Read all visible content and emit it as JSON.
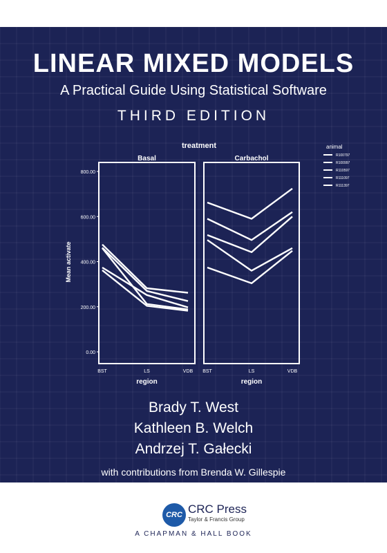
{
  "cover": {
    "title": "LINEAR MIXED MODELS",
    "subtitle": "A Practical Guide Using Statistical Software",
    "edition": "THIRD EDITION",
    "background_color": "#1c2355",
    "authors": [
      "Brady T. West",
      "Kathleen B. Welch",
      "Andrzej T. Gałecki"
    ],
    "contributions": "with contributions from Brenda W. Gillespie"
  },
  "publisher": {
    "logo_text": "CRC",
    "name": "CRC Press",
    "group": "Taylor & Francis Group",
    "imprint": "A CHAPMAN & HALL BOOK",
    "logo_color": "#1e5aa8"
  },
  "chart_data": {
    "type": "line",
    "header": "treatment",
    "panels": [
      "Basal",
      "Carbachol"
    ],
    "categories": [
      "BST",
      "LS",
      "VDB"
    ],
    "xlabel": "region",
    "ylabel": "Mean activate",
    "yticks": [
      "800.00",
      "600.00",
      "400.00",
      "200.00",
      "0.00"
    ],
    "ylim": [
      0,
      800
    ],
    "legend_title": "animal",
    "legend_labels": [
      "R100797",
      "R100997",
      "R110597",
      "R111097",
      "R111397"
    ],
    "series": [
      {
        "name": "R100797",
        "Basal": [
          476,
          282,
          262
        ],
        "Carbachol": [
          662,
          590,
          724
        ]
      },
      {
        "name": "R100997",
        "Basal": [
          462,
          270,
          225
        ],
        "Carbachol": [
          590,
          496,
          620
        ]
      },
      {
        "name": "R110597",
        "Basal": [
          374,
          252,
          197
        ],
        "Carbachol": [
          518,
          442,
          600
        ]
      },
      {
        "name": "R111097",
        "Basal": [
          362,
          204,
          182
        ],
        "Carbachol": [
          496,
          360,
          460
        ]
      },
      {
        "name": "R111397",
        "Basal": [
          460,
          212,
          188
        ],
        "Carbachol": [
          374,
          304,
          448
        ]
      }
    ]
  }
}
